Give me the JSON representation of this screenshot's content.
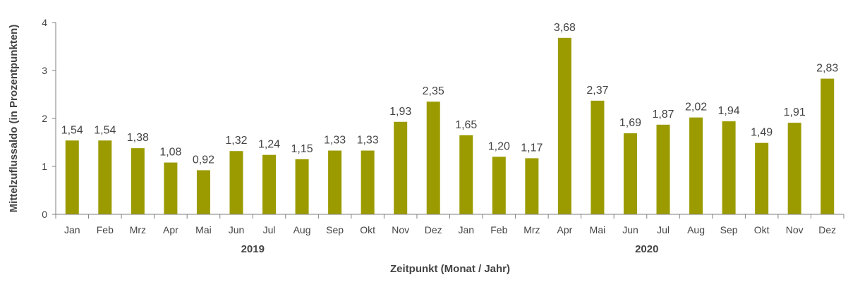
{
  "chart_data": {
    "type": "bar",
    "title": "",
    "xlabel": "Zeitpunkt (Monat / Jahr)",
    "ylabel": "Mittelzuflussaldo (in Prozentpunkten)",
    "ylim": [
      0,
      4
    ],
    "yticks": [
      "0",
      "1",
      "2",
      "3",
      "4"
    ],
    "grid": false,
    "legend": "none",
    "bar_color": "#9b9b00",
    "years": [
      {
        "label": "2019",
        "months": 12
      },
      {
        "label": "2020",
        "months": 12
      }
    ],
    "categories": [
      "Jan",
      "Feb",
      "Mrz",
      "Apr",
      "Mai",
      "Jun",
      "Jul",
      "Aug",
      "Sep",
      "Okt",
      "Nov",
      "Dez",
      "Jan",
      "Feb",
      "Mrz",
      "Apr",
      "Mai",
      "Jun",
      "Jul",
      "Aug",
      "Sep",
      "Okt",
      "Nov",
      "Dez"
    ],
    "values": [
      1.54,
      1.54,
      1.38,
      1.08,
      0.92,
      1.32,
      1.24,
      1.15,
      1.33,
      1.33,
      1.93,
      2.35,
      1.65,
      1.2,
      1.17,
      3.68,
      2.37,
      1.69,
      1.87,
      2.02,
      1.94,
      1.49,
      1.91,
      2.83
    ],
    "value_labels": [
      "1,54",
      "1,54",
      "1,38",
      "1,08",
      "0,92",
      "1,32",
      "1,24",
      "1,15",
      "1,33",
      "1,33",
      "1,93",
      "2,35",
      "1,65",
      "1,20",
      "1,17",
      "3,68",
      "2,37",
      "1,69",
      "1,87",
      "2,02",
      "1,94",
      "1,49",
      "1,91",
      "2,83"
    ]
  }
}
